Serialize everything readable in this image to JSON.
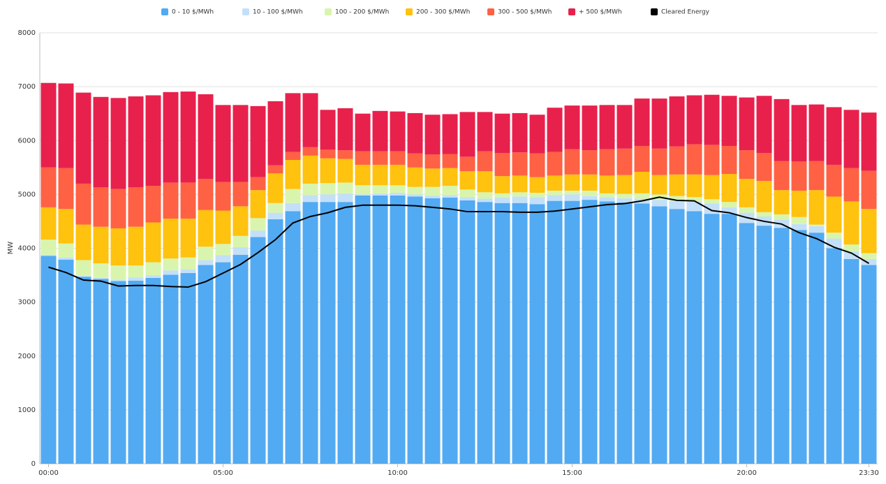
{
  "chart_data": {
    "type": "bar",
    "stacked": true,
    "y_label": "MW",
    "categories": [
      "00:00",
      null,
      null,
      null,
      null,
      null,
      null,
      null,
      null,
      null,
      "05:00",
      null,
      null,
      null,
      null,
      null,
      null,
      null,
      null,
      null,
      "10:00",
      null,
      null,
      null,
      null,
      null,
      null,
      null,
      null,
      null,
      "15:00",
      null,
      null,
      null,
      null,
      null,
      null,
      null,
      null,
      null,
      "20:00",
      null,
      null,
      null,
      null,
      null,
      null,
      "23:30"
    ],
    "ylim": [
      0,
      8000
    ],
    "yticks": [
      0,
      1000,
      2000,
      3000,
      4000,
      5000,
      6000,
      7000,
      8000
    ],
    "grid": true,
    "series": [
      {
        "name": "0 - 10 $/MWh",
        "color": "#52aaf2",
        "values": [
          3860,
          3790,
          3470,
          3430,
          3390,
          3400,
          3450,
          3510,
          3540,
          3690,
          3740,
          3880,
          4210,
          4540,
          4690,
          4860,
          4860,
          4860,
          4980,
          4980,
          4980,
          4960,
          4930,
          4940,
          4890,
          4860,
          4840,
          4840,
          4820,
          4880,
          4880,
          4900,
          4870,
          4850,
          4830,
          4780,
          4730,
          4690,
          4640,
          4640,
          4470,
          4420,
          4380,
          4340,
          4290,
          4000,
          3800,
          3690
        ]
      },
      {
        "name": "10 - 100 $/MWh",
        "color": "#c3e0f8",
        "values": [
          20,
          40,
          20,
          20,
          20,
          60,
          50,
          80,
          70,
          90,
          130,
          140,
          120,
          120,
          150,
          130,
          140,
          160,
          20,
          40,
          50,
          40,
          50,
          50,
          60,
          60,
          100,
          120,
          130,
          110,
          120,
          70,
          80,
          80,
          90,
          120,
          150,
          180,
          190,
          120,
          190,
          170,
          150,
          110,
          120,
          180,
          140,
          110
        ]
      },
      {
        "name": "100 - 200 $/MWh",
        "color": "#d9f5ad",
        "values": [
          280,
          260,
          290,
          270,
          270,
          220,
          240,
          220,
          220,
          250,
          210,
          210,
          230,
          180,
          260,
          210,
          210,
          200,
          170,
          150,
          140,
          140,
          160,
          170,
          140,
          120,
          80,
          80,
          80,
          80,
          70,
          100,
          70,
          80,
          100,
          100,
          90,
          80,
          80,
          100,
          100,
          80,
          100,
          130,
          30,
          110,
          130,
          110
        ]
      },
      {
        "name": "200 - 300 $/MWh",
        "color": "#ffc20e",
        "values": [
          600,
          640,
          660,
          680,
          690,
          720,
          740,
          740,
          720,
          680,
          620,
          550,
          520,
          550,
          540,
          520,
          460,
          440,
          380,
          380,
          380,
          360,
          340,
          330,
          340,
          390,
          320,
          310,
          290,
          280,
          300,
          300,
          330,
          350,
          400,
          360,
          400,
          420,
          450,
          520,
          530,
          580,
          450,
          490,
          640,
          670,
          800,
          820
        ]
      },
      {
        "name": "300 - 500 $/MWh",
        "color": "#ff6144",
        "values": [
          740,
          760,
          760,
          730,
          730,
          730,
          680,
          670,
          670,
          580,
          530,
          450,
          240,
          150,
          150,
          160,
          160,
          160,
          250,
          250,
          250,
          260,
          260,
          260,
          270,
          370,
          430,
          430,
          440,
          440,
          470,
          450,
          490,
          490,
          480,
          490,
          520,
          560,
          560,
          520,
          530,
          520,
          540,
          540,
          540,
          590,
          620,
          710
        ]
      },
      {
        "name": "+ 500 $/MWh",
        "color": "#e8214c",
        "values": [
          1570,
          1570,
          1690,
          1680,
          1690,
          1690,
          1680,
          1680,
          1690,
          1570,
          1430,
          1430,
          1320,
          1190,
          1090,
          1000,
          740,
          780,
          700,
          750,
          740,
          750,
          740,
          740,
          830,
          730,
          730,
          730,
          720,
          820,
          810,
          830,
          820,
          810,
          880,
          930,
          930,
          910,
          930,
          930,
          980,
          1060,
          1150,
          1050,
          1050,
          1070,
          1080,
          1080
        ]
      },
      {
        "name": "Cleared Energy",
        "type": "line",
        "color": "#000000",
        "values": [
          3650,
          3550,
          3410,
          3390,
          3300,
          3310,
          3310,
          3290,
          3280,
          3380,
          3540,
          3700,
          3920,
          4160,
          4470,
          4590,
          4660,
          4760,
          4800,
          4800,
          4800,
          4790,
          4760,
          4730,
          4680,
          4680,
          4680,
          4670,
          4670,
          4690,
          4730,
          4770,
          4810,
          4830,
          4880,
          4950,
          4890,
          4880,
          4700,
          4660,
          4570,
          4500,
          4450,
          4290,
          4180,
          4020,
          3910,
          3720
        ]
      }
    ]
  }
}
